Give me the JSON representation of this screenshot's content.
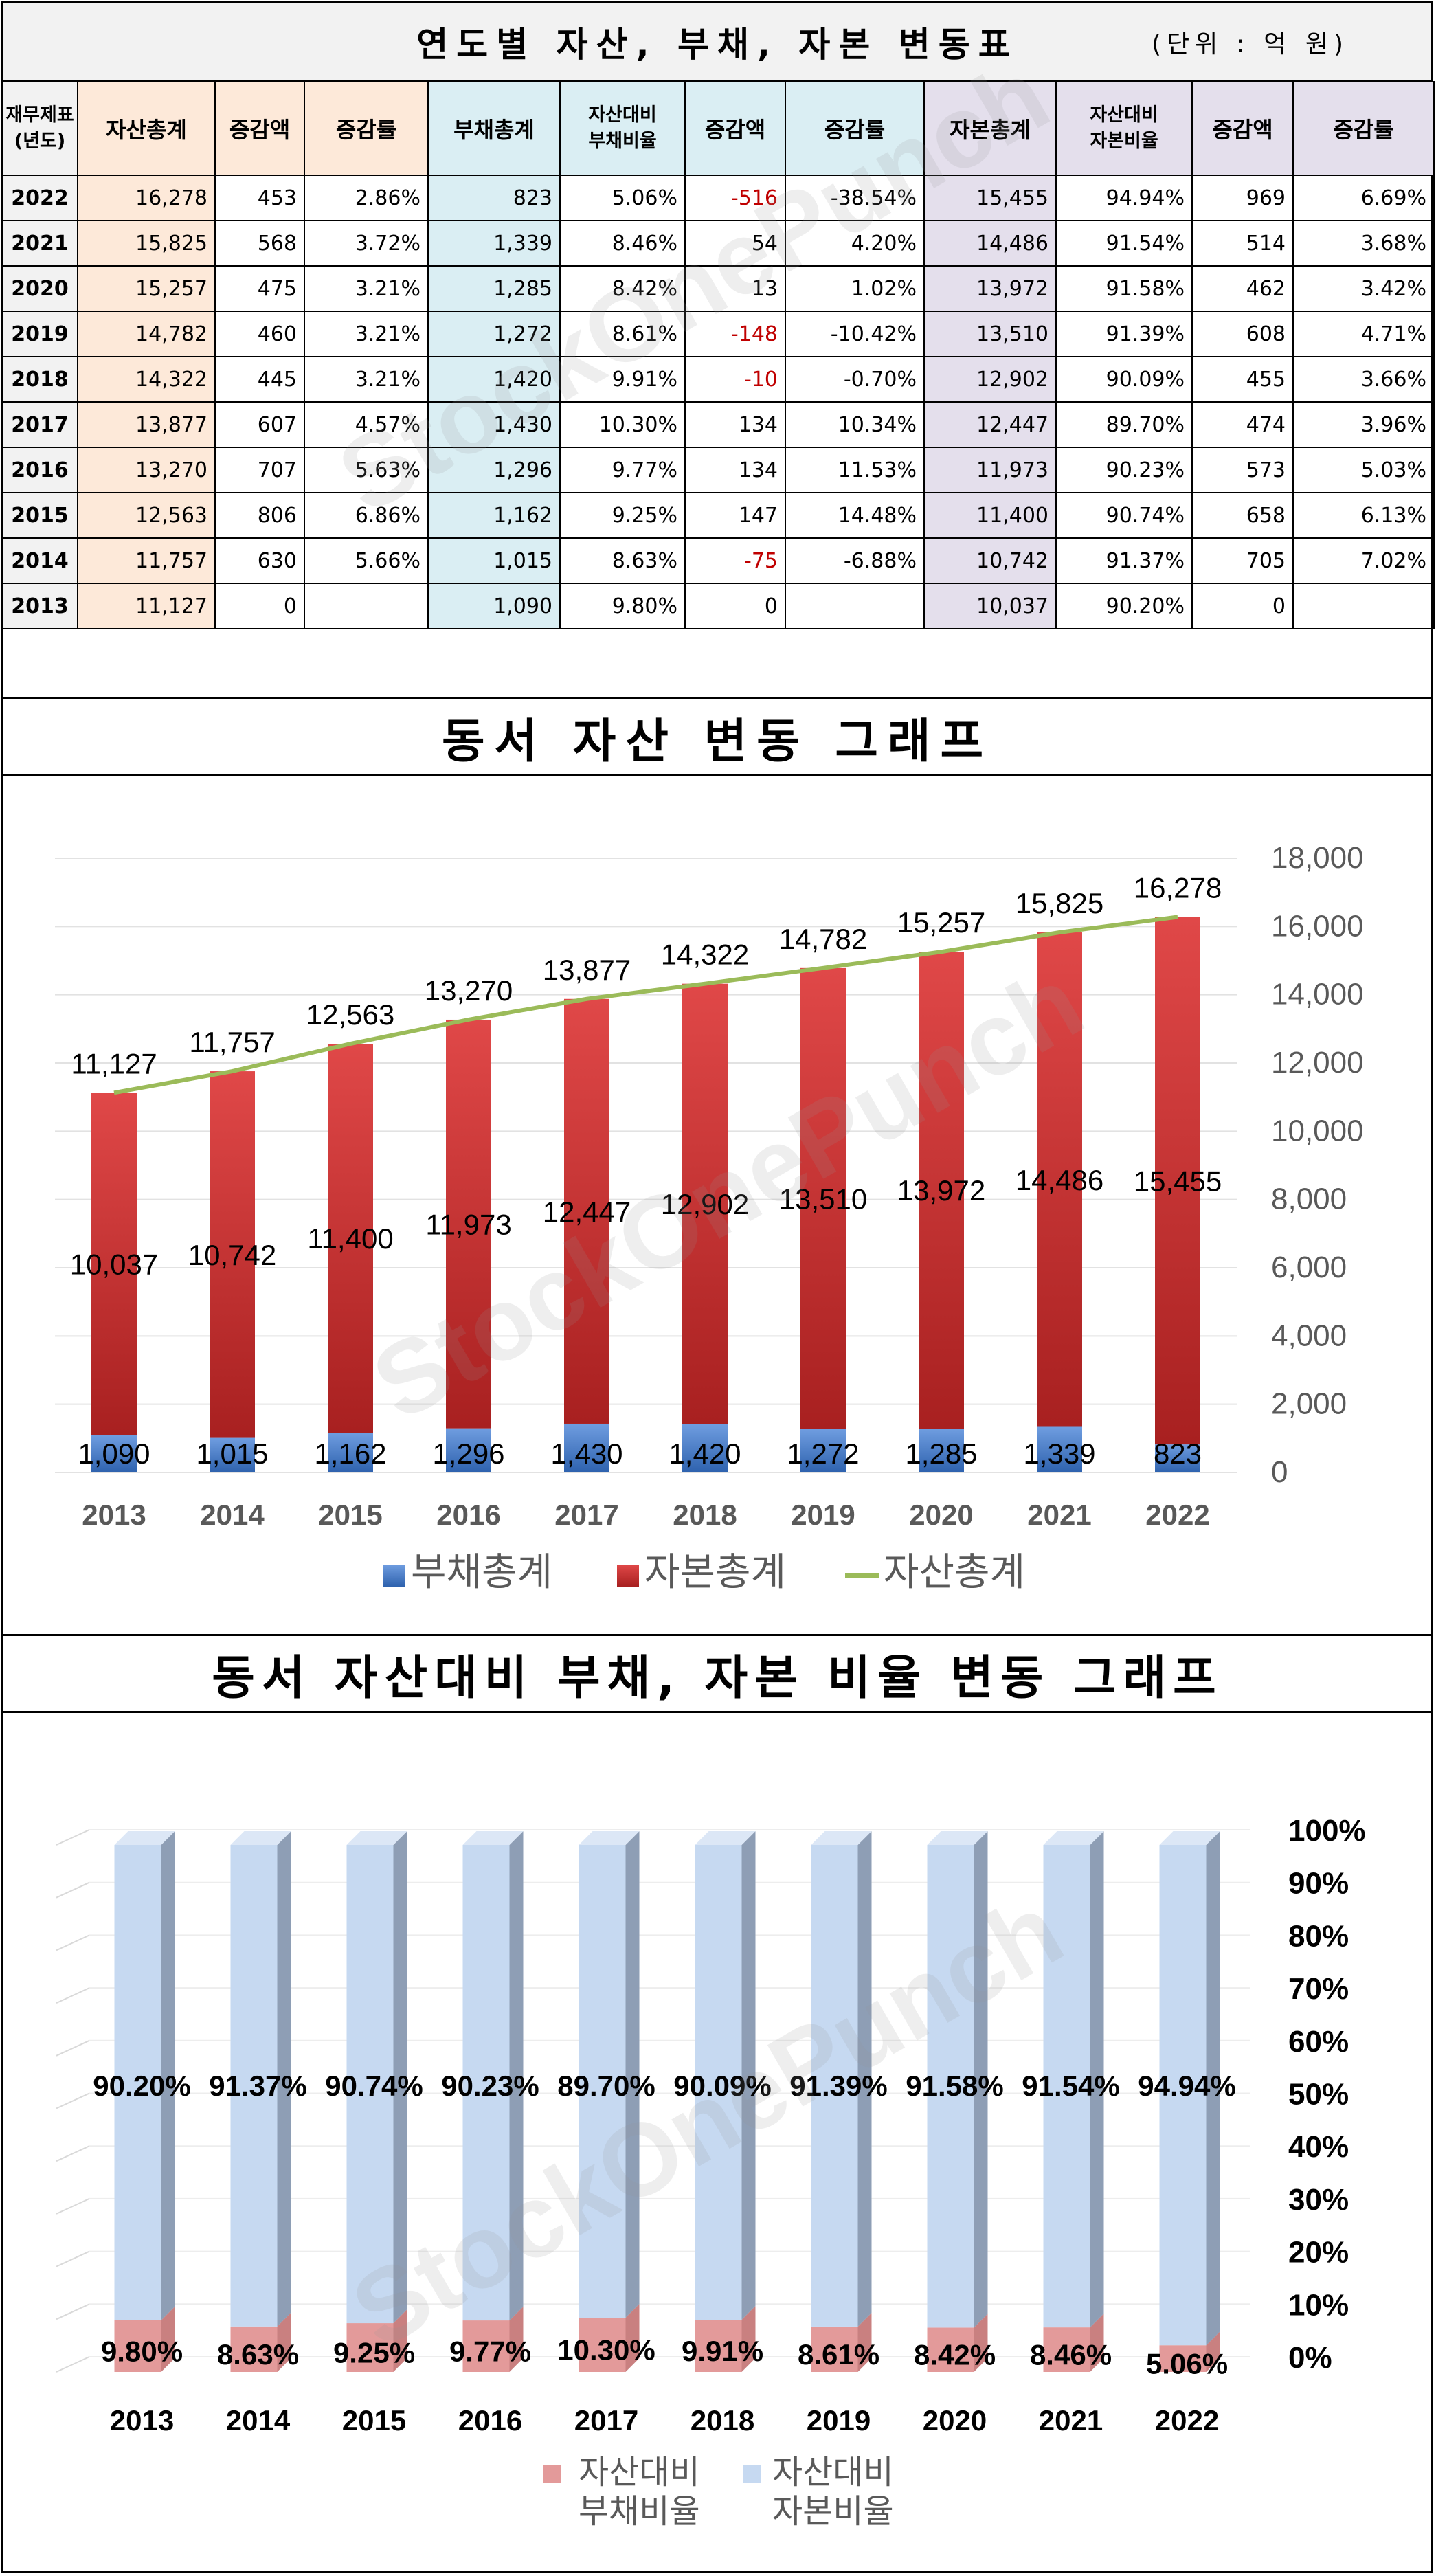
{
  "table": {
    "title": "연도별 자산, 부채, 자본 변동표",
    "unit": "(단위 : 억 원)",
    "headers": [
      "재무제표\n(년도)",
      "자산총계",
      "증감액",
      "증감률",
      "부채총계",
      "자산대비\n부채비율",
      "증감액",
      "증감률",
      "자본총계",
      "자산대비\n자본비율",
      "증감액",
      "증감률"
    ],
    "rows": [
      [
        "2022",
        "16,278",
        "453",
        "2.86%",
        "823",
        "5.06%",
        "-516",
        "-38.54%",
        "15,455",
        "94.94%",
        "969",
        "6.69%"
      ],
      [
        "2021",
        "15,825",
        "568",
        "3.72%",
        "1,339",
        "8.46%",
        "54",
        "4.20%",
        "14,486",
        "91.54%",
        "514",
        "3.68%"
      ],
      [
        "2020",
        "15,257",
        "475",
        "3.21%",
        "1,285",
        "8.42%",
        "13",
        "1.02%",
        "13,972",
        "91.58%",
        "462",
        "3.42%"
      ],
      [
        "2019",
        "14,782",
        "460",
        "3.21%",
        "1,272",
        "8.61%",
        "-148",
        "-10.42%",
        "13,510",
        "91.39%",
        "608",
        "4.71%"
      ],
      [
        "2018",
        "14,322",
        "445",
        "3.21%",
        "1,420",
        "9.91%",
        "-10",
        "-0.70%",
        "12,902",
        "90.09%",
        "455",
        "3.66%"
      ],
      [
        "2017",
        "13,877",
        "607",
        "4.57%",
        "1,430",
        "10.30%",
        "134",
        "10.34%",
        "12,447",
        "89.70%",
        "474",
        "3.96%"
      ],
      [
        "2016",
        "13,270",
        "707",
        "5.63%",
        "1,296",
        "9.77%",
        "134",
        "11.53%",
        "11,973",
        "90.23%",
        "573",
        "5.03%"
      ],
      [
        "2015",
        "12,563",
        "806",
        "6.86%",
        "1,162",
        "9.25%",
        "147",
        "14.48%",
        "11,400",
        "90.74%",
        "658",
        "6.13%"
      ],
      [
        "2014",
        "11,757",
        "630",
        "5.66%",
        "1,015",
        "8.63%",
        "-75",
        "-6.88%",
        "10,742",
        "91.37%",
        "705",
        "7.02%"
      ],
      [
        "2013",
        "11,127",
        "0",
        "",
        "1,090",
        "9.80%",
        "0",
        "",
        "10,037",
        "90.20%",
        "0",
        ""
      ]
    ]
  },
  "watermark": "StockOnePunch",
  "chart_data": [
    {
      "type": "bar",
      "title": "동서 자산 변동 그래프",
      "stacked": true,
      "categories": [
        "2013",
        "2014",
        "2015",
        "2016",
        "2017",
        "2018",
        "2019",
        "2020",
        "2021",
        "2022"
      ],
      "series": [
        {
          "name": "부채총계",
          "kind": "bar",
          "color": "#4a7fc9",
          "values": [
            1090,
            1015,
            1162,
            1296,
            1430,
            1420,
            1272,
            1285,
            1339,
            823
          ],
          "labels": [
            "1,090",
            "1,015",
            "1,162",
            "1,296",
            "1,430",
            "1,420",
            "1,272",
            "1,285",
            "1,339",
            "823"
          ]
        },
        {
          "name": "자본총계",
          "kind": "bar",
          "color": "#d83a3a",
          "values": [
            10037,
            10742,
            11400,
            11973,
            12447,
            12902,
            13510,
            13972,
            14486,
            15455
          ],
          "labels": [
            "10,037",
            "10,742",
            "11,400",
            "11,973",
            "12,447",
            "12,902",
            "13,510",
            "13,972",
            "14,486",
            "15,455"
          ]
        },
        {
          "name": "자산총계",
          "kind": "line",
          "color": "#9bbb59",
          "values": [
            11127,
            11757,
            12563,
            13270,
            13877,
            14322,
            14782,
            15257,
            15825,
            16278
          ],
          "labels": [
            "11,127",
            "11,757",
            "12,563",
            "13,270",
            "13,877",
            "14,322",
            "14,782",
            "15,257",
            "15,825",
            "16,278"
          ]
        }
      ],
      "ylim": [
        0,
        18000
      ],
      "yticks": [
        "0",
        "2,000",
        "4,000",
        "6,000",
        "8,000",
        "10,000",
        "12,000",
        "14,000",
        "16,000",
        "18,000"
      ],
      "ytick_values": [
        0,
        2000,
        4000,
        6000,
        8000,
        10000,
        12000,
        14000,
        16000,
        18000
      ],
      "legend": "bottom",
      "grid": true
    },
    {
      "type": "bar",
      "title": "동서 자산대비 부채, 자본 비율 변동 그래프",
      "stacked": true,
      "categories": [
        "2013",
        "2014",
        "2015",
        "2016",
        "2017",
        "2018",
        "2019",
        "2020",
        "2021",
        "2022"
      ],
      "series": [
        {
          "name": "자산대비\n부채비율",
          "color": "#e39a9a",
          "values": [
            9.8,
            8.63,
            9.25,
            9.77,
            10.3,
            9.91,
            8.61,
            8.42,
            8.46,
            5.06
          ],
          "labels": [
            "9.80%",
            "8.63%",
            "9.25%",
            "9.77%",
            "10.30%",
            "9.91%",
            "8.61%",
            "8.42%",
            "8.46%",
            "5.06%"
          ]
        },
        {
          "name": "자산대비\n자본비율",
          "color": "#c6d9f1",
          "values": [
            90.2,
            91.37,
            90.74,
            90.23,
            89.7,
            90.09,
            91.39,
            91.58,
            91.54,
            94.94
          ],
          "labels": [
            "90.20%",
            "91.37%",
            "90.74%",
            "90.23%",
            "89.70%",
            "90.09%",
            "91.39%",
            "91.58%",
            "91.54%",
            "94.94%"
          ]
        }
      ],
      "ylim": [
        0,
        100
      ],
      "yticks": [
        "0%",
        "10%",
        "20%",
        "30%",
        "40%",
        "50%",
        "60%",
        "70%",
        "80%",
        "90%",
        "100%"
      ],
      "ytick_values": [
        0,
        10,
        20,
        30,
        40,
        50,
        60,
        70,
        80,
        90,
        100
      ],
      "legend": "bottom",
      "grid": true
    }
  ]
}
